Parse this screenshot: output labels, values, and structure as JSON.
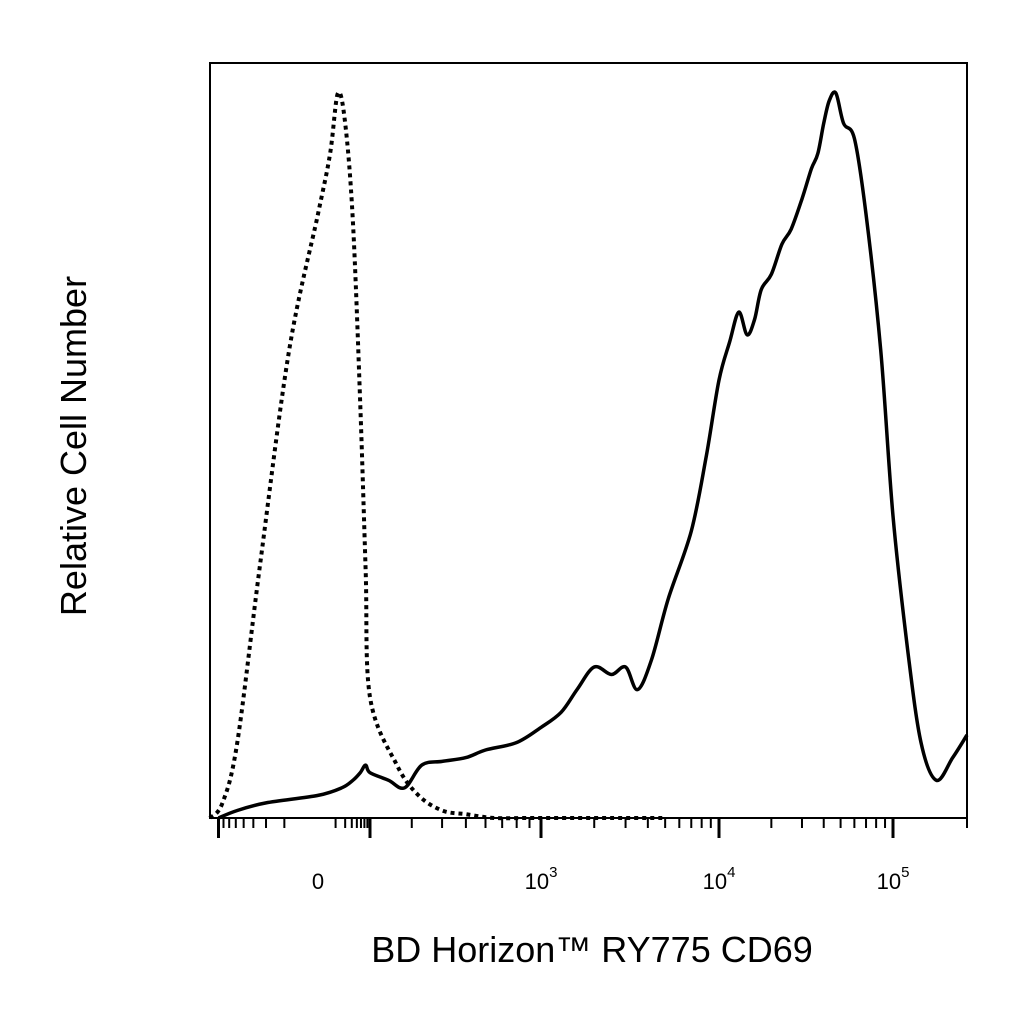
{
  "chart_data": {
    "type": "line",
    "xlabel": "BD Horizon™ RY775 CD69",
    "ylabel": "Relative Cell Number",
    "x_scale": "biexponential",
    "xlim": [
      -250,
      200000
    ],
    "ylim": [
      0,
      1
    ],
    "x_tick_labels": [
      {
        "value": 0,
        "base": "0",
        "exp": ""
      },
      {
        "value": 1000,
        "base": "10",
        "exp": "3"
      },
      {
        "value": 10000,
        "base": "10",
        "exp": "4"
      },
      {
        "value": 100000,
        "base": "10",
        "exp": "5"
      }
    ],
    "grid": false,
    "legend": "none",
    "series": [
      {
        "style": "dotted",
        "color": "#000000",
        "x": [
          -250,
          -180,
          -120,
          -60,
          -20,
          0,
          15,
          30,
          50,
          80,
          120,
          160,
          200,
          260,
          320,
          400,
          500,
          650,
          900,
          1400,
          2500,
          5000
        ],
        "y": [
          0.0,
          0.02,
          0.1,
          0.34,
          0.62,
          0.8,
          0.88,
          0.96,
          0.92,
          0.79,
          0.55,
          0.33,
          0.16,
          0.07,
          0.03,
          0.01,
          0.005,
          0.0,
          0.0,
          0.0,
          0.0,
          0.0
        ]
      },
      {
        "style": "solid",
        "color": "#000000",
        "x": [
          -200,
          -120,
          -50,
          0,
          40,
          80,
          120,
          160,
          200,
          240,
          280,
          330,
          400,
          500,
          600,
          800,
          1000,
          1300,
          1600,
          2000,
          2500,
          3000,
          3500,
          4200,
          5200,
          7000,
          8500,
          10000,
          11500,
          13000,
          14500,
          16000,
          17500,
          20000,
          23000,
          26000,
          30000,
          34000,
          37000,
          40000,
          43000,
          47000,
          52000,
          60000,
          70000,
          85000,
          100000,
          115000,
          130000,
          150000,
          175000,
          200000
        ],
        "y": [
          0.0,
          0.01,
          0.02,
          0.03,
          0.04,
          0.05,
          0.06,
          0.07,
          0.06,
          0.05,
          0.04,
          0.07,
          0.075,
          0.08,
          0.09,
          0.1,
          0.12,
          0.14,
          0.17,
          0.2,
          0.19,
          0.2,
          0.17,
          0.21,
          0.29,
          0.38,
          0.48,
          0.58,
          0.63,
          0.67,
          0.64,
          0.66,
          0.7,
          0.72,
          0.76,
          0.78,
          0.82,
          0.86,
          0.88,
          0.92,
          0.95,
          0.96,
          0.92,
          0.9,
          0.8,
          0.62,
          0.4,
          0.22,
          0.1,
          0.05,
          0.08,
          0.11
        ]
      }
    ]
  }
}
